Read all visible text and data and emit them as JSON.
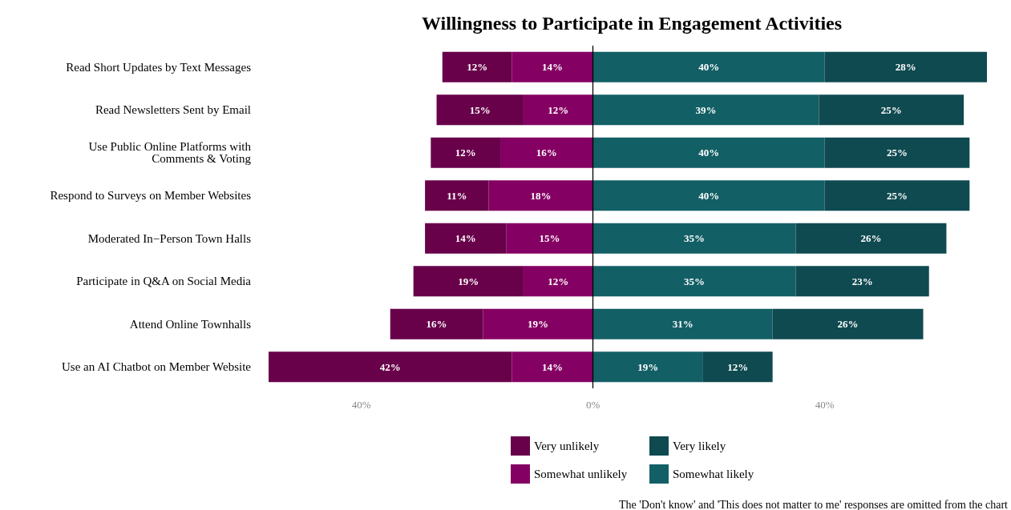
{
  "chart_data": {
    "type": "bar",
    "orientation": "horizontal",
    "title": "Willingness to Participate in Engagement Activities",
    "categories": [
      "Read Short Updates by Text Messages",
      "Read Newsletters Sent by Email",
      "Use Public Online Platforms with\nComments & Voting",
      "Respond to Surveys on Member Websites",
      "Moderated In−Person Town Halls",
      "Participate in Q&A on Social Media",
      "Attend Online Townhalls",
      "Use an AI Chatbot on Member Website"
    ],
    "series": [
      {
        "name": "Somewhat unlikely",
        "color": "#850063",
        "base": [
          -14,
          -12,
          -16,
          -18,
          -15,
          -12,
          -19,
          -14
        ],
        "values": [
          14,
          12,
          16,
          18,
          15,
          12,
          19,
          14
        ],
        "value_labels": [
          "14%",
          "12%",
          "16%",
          "18%",
          "15%",
          "12%",
          "19%",
          "14%"
        ]
      },
      {
        "name": "Very unlikely",
        "color": "#68004a",
        "base": [
          -26,
          -27,
          -28,
          -29,
          -29,
          -31,
          -35,
          -56
        ],
        "values": [
          12,
          15,
          12,
          11,
          14,
          19,
          16,
          42
        ],
        "value_labels": [
          "12%",
          "15%",
          "12%",
          "11%",
          "14%",
          "19%",
          "16%",
          "42%"
        ]
      },
      {
        "name": "Somewhat likely",
        "color": "#135f66",
        "base": [
          0,
          0,
          0,
          0,
          0,
          0,
          0,
          0
        ],
        "values": [
          40,
          39,
          40,
          40,
          35,
          35,
          31,
          19
        ],
        "value_labels": [
          "40%",
          "39%",
          "40%",
          "40%",
          "35%",
          "35%",
          "31%",
          "19%"
        ]
      },
      {
        "name": "Very likely",
        "color": "#0f4a50",
        "base": [
          40,
          39,
          40,
          40,
          35,
          35,
          31,
          19
        ],
        "values": [
          28,
          25,
          25,
          25,
          26,
          23,
          26,
          12
        ],
        "value_labels": [
          "28%",
          "25%",
          "25%",
          "25%",
          "26%",
          "23%",
          "26%",
          "12%"
        ]
      }
    ],
    "xlim": [
      -56,
      68
    ],
    "xticks": [
      {
        "value": -40,
        "label": "40%"
      },
      {
        "value": 0,
        "label": "0%"
      },
      {
        "value": 40,
        "label": "40%"
      }
    ],
    "ref_lines": [
      {
        "axis": "x",
        "value": 0,
        "label": null,
        "color": "#000000"
      }
    ],
    "grid": false,
    "legend": "bottom",
    "annotations": [
      "The 'Don't know' and 'This does not matter to me' responses are omitted from the chart"
    ]
  }
}
